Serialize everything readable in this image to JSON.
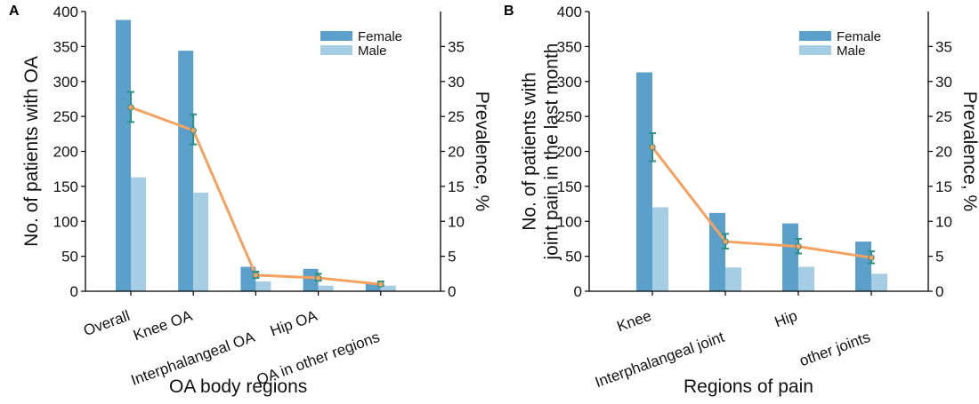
{
  "panels": [
    {
      "letter": "A",
      "chart_data": {
        "type": "bar",
        "title": "",
        "xlabel": "OA body regions",
        "ylabel": "No. of patients with OA",
        "y2label": "Prevalence, %",
        "ylim": [
          0,
          400
        ],
        "y2lim": [
          0,
          40
        ],
        "yticks": [
          "0",
          "50",
          "100",
          "150",
          "200",
          "250",
          "300",
          "350",
          "400"
        ],
        "y2ticks": [
          "0",
          "5",
          "10",
          "15",
          "20",
          "25",
          "30",
          "35"
        ],
        "categories": [
          "Overall",
          "Knee OA",
          "Interphalangeal OA",
          "Hip OA",
          "OA in other regions"
        ],
        "series": [
          {
            "name": "Female",
            "color": "#5b9fcb",
            "values": [
              388,
              344,
              35,
              32,
              12
            ]
          },
          {
            "name": "Male",
            "color": "#a5cde4",
            "values": [
              163,
              141,
              14,
              8,
              8
            ]
          }
        ],
        "line": {
          "color": "#f5a261",
          "errorbar_color": "#2a8f87",
          "values": [
            26.3,
            23.0,
            2.3,
            1.9,
            1.0
          ],
          "err_low": [
            24.2,
            21.0,
            1.9,
            1.5,
            0.8
          ],
          "err_high": [
            28.5,
            25.3,
            2.8,
            2.5,
            1.4
          ]
        },
        "legend_position": "top-right",
        "grid": false
      }
    },
    {
      "letter": "B",
      "chart_data": {
        "type": "bar",
        "title": "",
        "xlabel": "Regions of pain",
        "ylabel_lines": [
          "No. of patients with",
          "joint pain in the last month"
        ],
        "y2label": "Prevalence, %",
        "ylim": [
          0,
          400
        ],
        "y2lim": [
          0,
          40
        ],
        "yticks": [
          "0",
          "50",
          "100",
          "150",
          "200",
          "250",
          "300",
          "350",
          "400"
        ],
        "y2ticks": [
          "0",
          "5",
          "10",
          "15",
          "20",
          "25",
          "30",
          "35"
        ],
        "categories": [
          "Knee",
          "Interphalangeal joint",
          "Hip",
          "other joints"
        ],
        "series": [
          {
            "name": "Female",
            "color": "#5b9fcb",
            "values": [
              313,
              112,
              97,
              71
            ]
          },
          {
            "name": "Male",
            "color": "#a5cde4",
            "values": [
              120,
              34,
              35,
              25
            ]
          }
        ],
        "line": {
          "color": "#f5a261",
          "errorbar_color": "#2a8f87",
          "values": [
            20.6,
            7.1,
            6.4,
            4.8
          ],
          "err_low": [
            18.6,
            6.1,
            5.4,
            4.0
          ],
          "err_high": [
            22.6,
            8.2,
            7.5,
            5.7
          ]
        },
        "legend_position": "top-right",
        "grid": false
      }
    }
  ]
}
